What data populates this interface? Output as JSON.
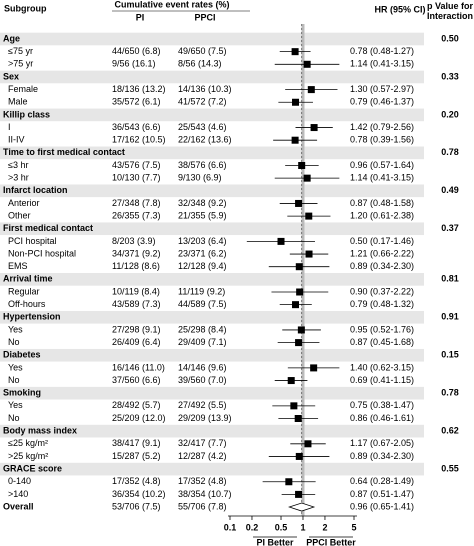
{
  "chart_data": {
    "type": "forest",
    "xscale": "log",
    "xlim": [
      0.1,
      5
    ],
    "xticks": [
      0.1,
      0.2,
      0.5,
      1,
      2,
      5
    ],
    "reference": 1,
    "marker_color": "#000000",
    "band_color": "#e6e6e6",
    "headers": {
      "subgroup": "Subgroup",
      "rates": "Cumulative event rates (%)",
      "pi": "PI",
      "ppci": "PPCI",
      "hr": "HR (95% CI)",
      "p": "p Value for Interaction"
    },
    "favors": {
      "left": "PI Better",
      "right": "PPCI Better"
    },
    "rows": [
      {
        "label": "Age",
        "p": "0.50"
      },
      {
        "label": "≤75 yr",
        "pi": "44/650 (6.8)",
        "ppci": "49/650 (7.5)",
        "hr": 0.78,
        "lo": 0.48,
        "hi": 1.27,
        "hr_label": "0.78 (0.48-1.27)"
      },
      {
        "label": ">75 yr",
        "pi": "9/56 (16.1)",
        "ppci": "8/56 (14.3)",
        "hr": 1.14,
        "lo": 0.41,
        "hi": 3.15,
        "hr_label": "1.14 (0.41-3.15)"
      },
      {
        "label": "Sex",
        "p": "0.33"
      },
      {
        "label": "Female",
        "pi": "18/136 (13.2)",
        "ppci": "14/136 (10.3)",
        "hr": 1.3,
        "lo": 0.57,
        "hi": 2.97,
        "hr_label": "1.30 (0.57-2.97)"
      },
      {
        "label": "Male",
        "pi": "35/572 (6.1)",
        "ppci": "41/572 (7.2)",
        "hr": 0.79,
        "lo": 0.46,
        "hi": 1.37,
        "hr_label": "0.79 (0.46-1.37)"
      },
      {
        "label": "Killip class",
        "p": "0.20"
      },
      {
        "label": "I",
        "pi": "36/543 (6.6)",
        "ppci": "25/543 (4.6)",
        "hr": 1.42,
        "lo": 0.79,
        "hi": 2.56,
        "hr_label": "1.42 (0.79-2.56)"
      },
      {
        "label": "II-IV",
        "pi": "17/162 (10.5)",
        "ppci": "22/162 (13.6)",
        "hr": 0.78,
        "lo": 0.39,
        "hi": 1.56,
        "hr_label": "0.78 (0.39-1.56)"
      },
      {
        "label": "Time to first medical contact",
        "p": "0.78"
      },
      {
        "label": "≤3 hr",
        "pi": "43/576 (7.5)",
        "ppci": "38/576 (6.6)",
        "hr": 0.96,
        "lo": 0.57,
        "hi": 1.64,
        "hr_label": "0.96 (0.57-1.64)"
      },
      {
        "label": ">3 hr",
        "pi": "10/130 (7.7)",
        "ppci": "9/130 (6.9)",
        "hr": 1.14,
        "lo": 0.41,
        "hi": 3.15,
        "hr_label": "1.14 (0.41-3.15)"
      },
      {
        "label": "Infarct location",
        "p": "0.49"
      },
      {
        "label": "Anterior",
        "pi": "27/348 (7.8)",
        "ppci": "32/348 (9.2)",
        "hr": 0.87,
        "lo": 0.48,
        "hi": 1.58,
        "hr_label": "0.87 (0.48-1.58)"
      },
      {
        "label": "Other",
        "pi": "26/355 (7.3)",
        "ppci": "21/355 (5.9)",
        "hr": 1.2,
        "lo": 0.61,
        "hi": 2.38,
        "hr_label": "1.20 (0.61-2.38)"
      },
      {
        "label": "First medical contact",
        "p": "0.37"
      },
      {
        "label": "PCI hospital",
        "pi": "8/203 (3.9)",
        "ppci": "13/203 (6.4)",
        "hr": 0.5,
        "lo": 0.17,
        "hi": 1.46,
        "hr_label": "0.50 (0.17-1.46)"
      },
      {
        "label": "Non-PCI hospital",
        "pi": "34/371 (9.2)",
        "ppci": "23/371 (6.2)",
        "hr": 1.21,
        "lo": 0.66,
        "hi": 2.22,
        "hr_label": "1.21 (0.66-2.22)"
      },
      {
        "label": "EMS",
        "pi": "11/128 (8.6)",
        "ppci": "12/128 (9.4)",
        "hr": 0.89,
        "lo": 0.34,
        "hi": 2.3,
        "hr_label": "0.89 (0.34-2.30)"
      },
      {
        "label": "Arrival time",
        "p": "0.81"
      },
      {
        "label": "Regular",
        "pi": "10/119 (8.4)",
        "ppci": "11/119 (9.2)",
        "hr": 0.9,
        "lo": 0.37,
        "hi": 2.22,
        "hr_label": "0.90 (0.37-2.22)"
      },
      {
        "label": "Off-hours",
        "pi": "43/589 (7.3)",
        "ppci": "44/589 (7.5)",
        "hr": 0.79,
        "lo": 0.48,
        "hi": 1.32,
        "hr_label": "0.79 (0.48-1.32)"
      },
      {
        "label": "Hypertension",
        "p": "0.91"
      },
      {
        "label": "Yes",
        "pi": "27/298 (9.1)",
        "ppci": "25/298 (8.4)",
        "hr": 0.95,
        "lo": 0.52,
        "hi": 1.76,
        "hr_label": "0.95 (0.52-1.76)"
      },
      {
        "label": "No",
        "pi": "26/409 (6.4)",
        "ppci": "29/409 (7.1)",
        "hr": 0.87,
        "lo": 0.45,
        "hi": 1.68,
        "hr_label": "0.87 (0.45-1.68)"
      },
      {
        "label": "Diabetes",
        "p": "0.15"
      },
      {
        "label": "Yes",
        "pi": "16/146 (11.0)",
        "ppci": "14/146 (9.6)",
        "hr": 1.4,
        "lo": 0.62,
        "hi": 3.15,
        "hr_label": "1.40 (0.62-3.15)"
      },
      {
        "label": "No",
        "pi": "37/560 (6.6)",
        "ppci": "39/560 (7.0)",
        "hr": 0.69,
        "lo": 0.41,
        "hi": 1.15,
        "hr_label": "0.69 (0.41-1.15)"
      },
      {
        "label": "Smoking",
        "p": "0.78"
      },
      {
        "label": "Yes",
        "pi": "28/492 (5.7)",
        "ppci": "27/492 (5.5)",
        "hr": 0.75,
        "lo": 0.38,
        "hi": 1.47,
        "hr_label": "0.75 (0.38-1.47)"
      },
      {
        "label": "No",
        "pi": "25/209 (12.0)",
        "ppci": "29/209 (13.9)",
        "hr": 0.86,
        "lo": 0.46,
        "hi": 1.61,
        "hr_label": "0.86 (0.46-1.61)"
      },
      {
        "label": "Body mass index",
        "p": "0.62"
      },
      {
        "label": "≤25 kg/m²",
        "pi": "38/417 (9.1)",
        "ppci": "32/417 (7.7)",
        "hr": 1.17,
        "lo": 0.67,
        "hi": 2.05,
        "hr_label": "1.17 (0.67-2.05)"
      },
      {
        "label": ">25 kg/m²",
        "pi": "15/287 (5.2)",
        "ppci": "12/287 (4.2)",
        "hr": 0.89,
        "lo": 0.34,
        "hi": 2.3,
        "hr_label": "0.89 (0.34-2.30)"
      },
      {
        "label": "GRACE score",
        "p": "0.55"
      },
      {
        "label": "0-140",
        "pi": "17/352 (4.8)",
        "ppci": "17/352 (4.8)",
        "hr": 0.64,
        "lo": 0.28,
        "hi": 1.49,
        "hr_label": "0.64 (0.28-1.49)"
      },
      {
        "label": ">140",
        "pi": "36/354 (10.2)",
        "ppci": "38/354 (10.7)",
        "hr": 0.87,
        "lo": 0.51,
        "hi": 1.47,
        "hr_label": "0.87 (0.51-1.47)"
      },
      {
        "label": "Overall",
        "pi": "53/706 (7.5)",
        "ppci": "55/706 (7.8)",
        "hr": 0.96,
        "lo": 0.65,
        "hi": 1.41,
        "hr_label": "0.96 (0.65-1.41)",
        "summary": true
      }
    ]
  }
}
